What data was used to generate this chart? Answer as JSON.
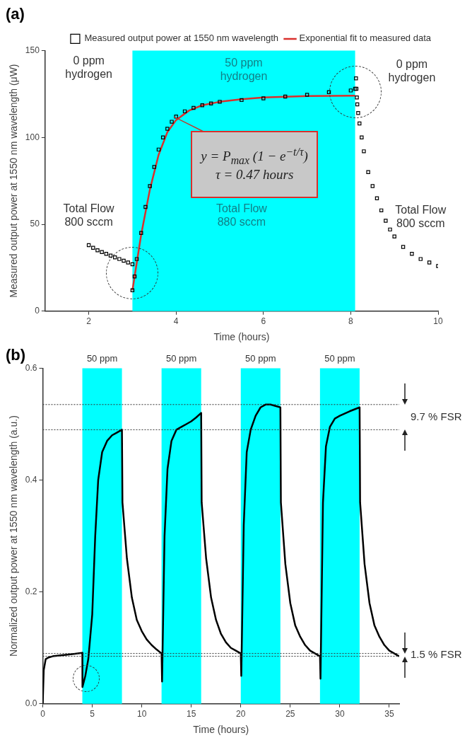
{
  "chart_data": [
    {
      "type": "scatter",
      "title": "(a)",
      "xlabel": "Time (hours)",
      "ylabel": "Measured output power at 1550 nm wavelength (μW)",
      "xlim": [
        1,
        10
      ],
      "ylim": [
        0,
        150
      ],
      "xticks": [
        2,
        4,
        6,
        8,
        10
      ],
      "yticks": [
        0,
        50,
        100,
        150
      ],
      "grid": false,
      "legend": "top right",
      "series": [
        {
          "name": "Measured output power at 1550 nm wavelength",
          "marker": "square",
          "color": "#000000",
          "x": [
            2.0,
            2.1,
            2.2,
            2.3,
            2.4,
            2.5,
            2.6,
            2.7,
            2.8,
            2.9,
            3.0,
            3.0,
            3.05,
            3.1,
            3.2,
            3.3,
            3.4,
            3.5,
            3.6,
            3.7,
            3.8,
            3.9,
            4.0,
            4.2,
            4.4,
            4.6,
            4.8,
            5.0,
            5.5,
            6.0,
            6.5,
            7.0,
            7.5,
            8.0,
            8.1,
            8.12,
            8.13,
            8.14,
            8.15,
            8.17,
            8.2,
            8.25,
            8.3,
            8.4,
            8.5,
            8.6,
            8.7,
            8.8,
            8.9,
            9.0,
            9.2,
            9.4,
            9.6,
            9.8,
            10.0
          ],
          "values": [
            38,
            36.5,
            35,
            34,
            33,
            32,
            31,
            30,
            29,
            28,
            27,
            12,
            20,
            30,
            45,
            60,
            72,
            83,
            93,
            100,
            105,
            109,
            112,
            115,
            117,
            118.5,
            119.5,
            120.5,
            121.5,
            122.5,
            123.5,
            124.5,
            126,
            127,
            128,
            134,
            128,
            123,
            119,
            114,
            108,
            100,
            92,
            80,
            72,
            65,
            58,
            52,
            47,
            43,
            37,
            33,
            30,
            28,
            26
          ]
        },
        {
          "name": "Exponential fit to measured data",
          "type": "line",
          "marker": "none",
          "color": "#d9302c",
          "x": [
            3.0,
            3.2,
            3.4,
            3.6,
            3.8,
            4.0,
            4.3,
            4.6,
            5.0,
            5.5,
            6.0,
            7.0,
            8.1
          ],
          "values": [
            12,
            44,
            70,
            90,
            103,
            110,
            115.5,
            118.5,
            120.5,
            122,
            123,
            123.8,
            124
          ]
        }
      ],
      "bands": [
        {
          "axis": "x",
          "from": 3,
          "to": 8.1,
          "label": "50 ppm\nhydrogen",
          "color": "#00ffff"
        }
      ],
      "annotations": [
        "0 ppm\nhydrogen",
        "0 ppm\nhydrogen",
        "Total Flow\n800 sccm",
        "Total Flow\n880 sccm",
        "Total Flow\n800 sccm",
        {
          "text": "y = P$_{max}$ (1 − e$^{−t/τ}$)\nτ = 0.47 hours",
          "x": 3.95,
          "y": 112
        }
      ]
    },
    {
      "type": "line",
      "title": "(b)",
      "xlabel": "Time (hours)",
      "ylabel": "Normalized output power at 1550 nm wavelength (a.u.)",
      "xlim": [
        0,
        36
      ],
      "ylim": [
        0,
        0.6
      ],
      "xticks": [
        0,
        5,
        10,
        15,
        20,
        25,
        30,
        35
      ],
      "yticks": [
        {
          "value": 0,
          "label": "0.0"
        },
        {
          "value": 0.2,
          "label": "0.2"
        },
        {
          "value": 0.4,
          "label": "0.4"
        },
        {
          "value": 0.6,
          "label": "0.6"
        }
      ],
      "grid": false,
      "marker": "none",
      "series": [
        {
          "color": "#000000",
          "x": [
            0,
            0.1,
            0.3,
            0.6,
            1,
            2,
            3,
            4,
            4.01,
            4.3,
            4.6,
            5,
            5.3,
            5.6,
            6,
            6.5,
            7,
            7.5,
            8,
            8.05,
            8.5,
            9,
            9.5,
            10,
            10.5,
            11,
            11.5,
            12,
            12.05,
            12.3,
            12.6,
            13,
            13.5,
            14,
            14.5,
            15,
            15.5,
            16,
            16.05,
            16.5,
            17,
            17.5,
            18,
            18.5,
            19,
            19.5,
            20,
            20.05,
            20.3,
            20.6,
            21,
            21.5,
            22,
            22.5,
            23,
            24,
            24.05,
            24.5,
            25,
            25.5,
            26,
            26.5,
            27,
            27.5,
            28,
            28.05,
            28.3,
            28.6,
            29,
            29.5,
            30,
            31,
            32,
            32.05,
            32.5,
            33,
            33.5,
            34,
            34.5,
            35,
            35.5,
            36
          ],
          "values": [
            0,
            0.06,
            0.08,
            0.083,
            0.085,
            0.087,
            0.089,
            0.091,
            0.03,
            0.05,
            0.08,
            0.16,
            0.3,
            0.4,
            0.45,
            0.47,
            0.48,
            0.485,
            0.49,
            0.36,
            0.26,
            0.19,
            0.15,
            0.13,
            0.115,
            0.105,
            0.097,
            0.09,
            0.04,
            0.3,
            0.42,
            0.47,
            0.49,
            0.495,
            0.5,
            0.505,
            0.512,
            0.52,
            0.36,
            0.26,
            0.19,
            0.15,
            0.125,
            0.11,
            0.1,
            0.095,
            0.09,
            0.05,
            0.32,
            0.45,
            0.49,
            0.515,
            0.53,
            0.535,
            0.535,
            0.53,
            0.36,
            0.25,
            0.18,
            0.14,
            0.12,
            0.105,
            0.095,
            0.09,
            0.085,
            0.045,
            0.36,
            0.46,
            0.495,
            0.51,
            0.515,
            0.523,
            0.53,
            0.36,
            0.25,
            0.18,
            0.14,
            0.12,
            0.105,
            0.095,
            0.09,
            0.085
          ]
        }
      ],
      "bands": [
        {
          "axis": "x",
          "from": 4,
          "to": 8,
          "label": "50 ppm",
          "color": "#00ffff"
        },
        {
          "axis": "x",
          "from": 12,
          "to": 16,
          "label": "50 ppm",
          "color": "#00ffff"
        },
        {
          "axis": "x",
          "from": 20,
          "to": 24,
          "label": "50 ppm",
          "color": "#00ffff"
        },
        {
          "axis": "x",
          "from": 28,
          "to": 32,
          "label": "50 ppm",
          "color": "#00ffff"
        }
      ],
      "ref_lines": [
        {
          "axis": "y",
          "value": 0.535,
          "color": "#333333",
          "line_style": "dotted"
        },
        {
          "axis": "y",
          "value": 0.49,
          "color": "#333333",
          "line_style": "dotted"
        },
        {
          "axis": "y",
          "value": 0.09,
          "color": "#333333",
          "line_style": "dotted"
        },
        {
          "axis": "y",
          "value": 0.085,
          "color": "#333333",
          "line_style": "dotted"
        }
      ],
      "annotations": [
        "9.7 % FSR",
        "1.5 % FSR"
      ]
    }
  ]
}
